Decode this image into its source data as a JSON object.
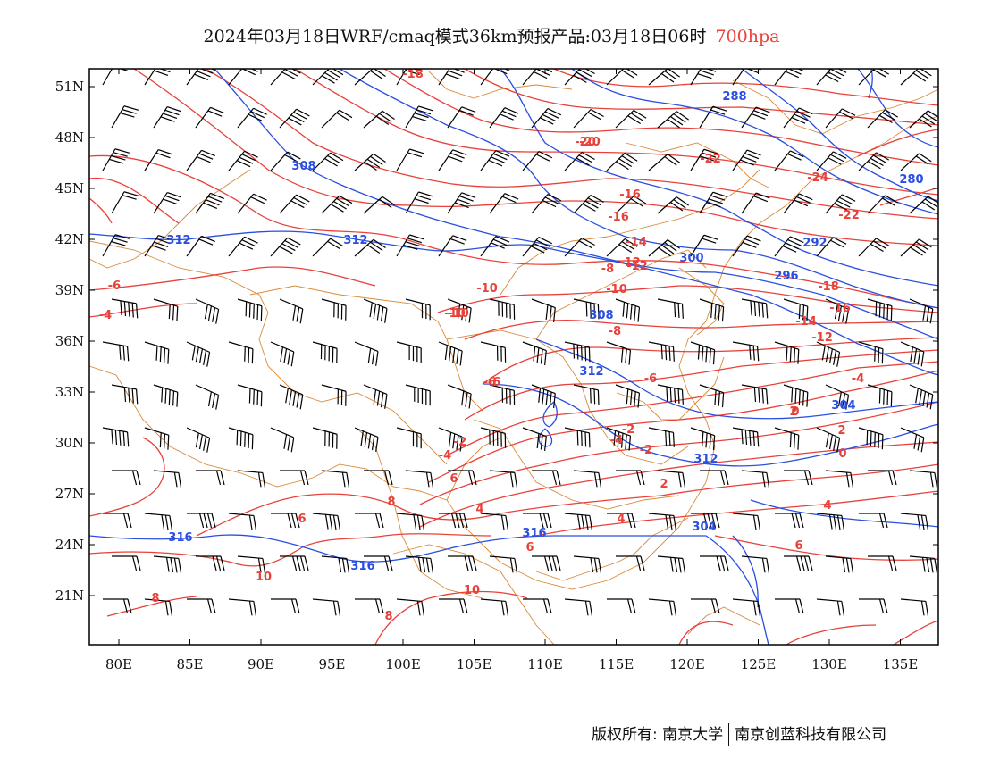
{
  "title": {
    "main": "2024年03月18日WRF/cmaq模式36km预报产品:03月18日06时",
    "level": "700hpa",
    "level_color": "#e8413a"
  },
  "footer": {
    "left": "版权所有: 南京大学",
    "right": "南京创蓝科技有限公司"
  },
  "colors": {
    "temperature": "#e8413a",
    "geopotential": "#2a4fe0",
    "boundaries": "#d98a3a",
    "wind": "#000000"
  },
  "axes": {
    "lon_labels": [
      "80E",
      "85E",
      "90E",
      "95E",
      "100E",
      "105E",
      "110E",
      "115E",
      "120E",
      "125E",
      "130E",
      "135E"
    ],
    "lat_labels": [
      "51N",
      "48N",
      "45N",
      "42N",
      "39N",
      "36N",
      "33N",
      "30N",
      "27N",
      "24N",
      "21N"
    ],
    "lon_values": [
      80,
      85,
      90,
      95,
      100,
      105,
      110,
      115,
      120,
      125,
      130,
      135
    ],
    "lat_values": [
      51,
      48,
      45,
      42,
      39,
      36,
      33,
      30,
      27,
      24,
      21
    ]
  },
  "temperature_labels": [
    "-18",
    "-20",
    "-22",
    "-24",
    "-22",
    "-16",
    "-16",
    "-14",
    "-12",
    "-10",
    "-18",
    "-16",
    "-14",
    "-12",
    "-10",
    "-8",
    "-6",
    "-6",
    "-4",
    "-2",
    "-4",
    "-2",
    "0",
    "2",
    "0",
    "2",
    "4",
    "4",
    "6",
    "6",
    "8",
    "8",
    "10",
    "10",
    "-6",
    "-4",
    "-10",
    "-8",
    "-12",
    "-20",
    "-6",
    "-4",
    "2",
    "-2",
    "4",
    "6",
    "8",
    "-4",
    "6",
    "-10"
  ],
  "height_labels": [
    "288",
    "280",
    "308",
    "312",
    "312",
    "300",
    "292",
    "296",
    "308",
    "304",
    "312",
    "312",
    "316",
    "316",
    "316",
    "304"
  ]
}
